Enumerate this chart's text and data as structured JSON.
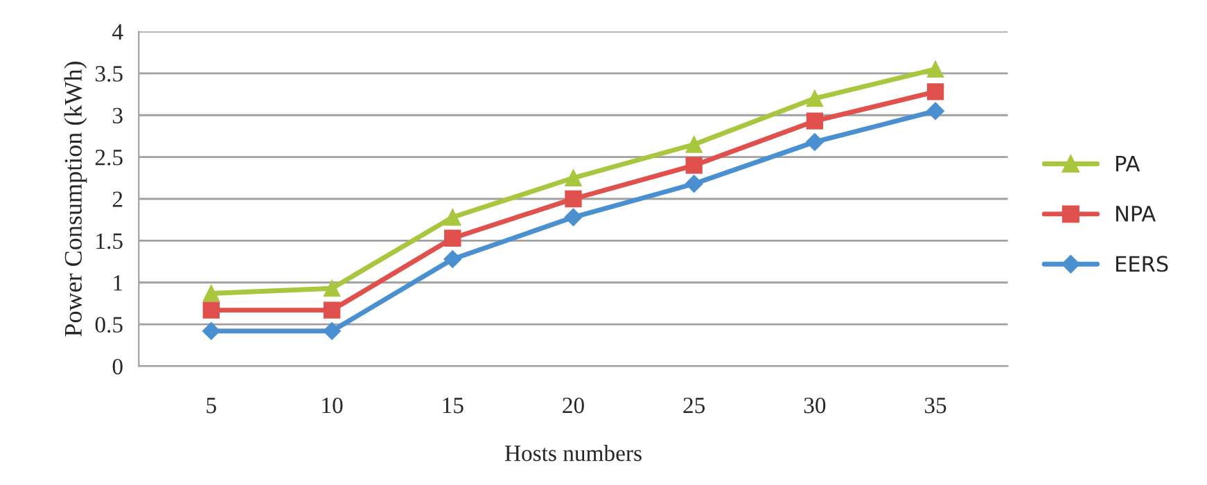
{
  "chart_data": {
    "type": "line",
    "xlabel": "Hosts numbers",
    "ylabel": "Power Consumption (kWh)",
    "categories": [
      "5",
      "10",
      "15",
      "20",
      "25",
      "30",
      "35"
    ],
    "series": [
      {
        "name": "PA",
        "color": "#a9c63f",
        "marker": "triangle",
        "values": [
          0.87,
          0.93,
          1.78,
          2.25,
          2.65,
          3.2,
          3.55
        ]
      },
      {
        "name": "NPA",
        "color": "#e0504c",
        "marker": "square",
        "values": [
          0.67,
          0.67,
          1.53,
          2.0,
          2.4,
          2.93,
          3.28
        ]
      },
      {
        "name": "EERS",
        "color": "#4a90d0",
        "marker": "diamond",
        "values": [
          0.42,
          0.42,
          1.28,
          1.78,
          2.18,
          2.68,
          3.05
        ]
      }
    ],
    "ylim": [
      0,
      4
    ],
    "yticks": [
      0,
      0.5,
      1,
      1.5,
      2,
      2.5,
      3,
      3.5,
      4
    ],
    "grid": "y",
    "legend": "right"
  }
}
